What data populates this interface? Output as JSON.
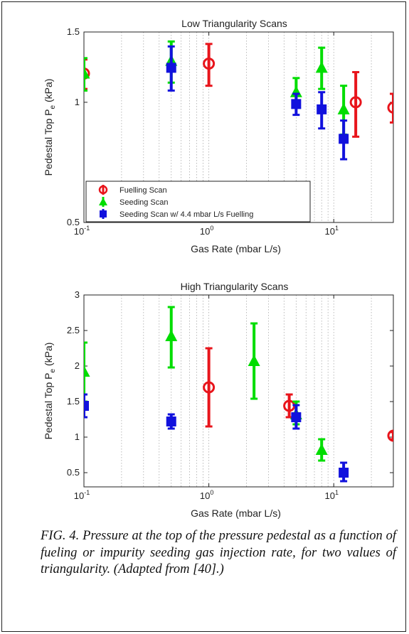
{
  "chart_data": [
    {
      "type": "scatter",
      "title": "Low Triangularity Scans",
      "xlabel": "Gas Rate (mbar L/s)",
      "ylabel": "Pedestal Top P",
      "ylabel_sub": "e",
      "ylabel_unit": " (kPa)",
      "xscale": "log",
      "yscale": "log",
      "xlim": [
        0.1,
        30
      ],
      "ylim": [
        0.5,
        1.5
      ],
      "xticks": [
        {
          "value": 0.1,
          "base": "10",
          "exp": "-1"
        },
        {
          "value": 1,
          "base": "10",
          "exp": "0"
        },
        {
          "value": 10,
          "base": "10",
          "exp": "1"
        }
      ],
      "yticks": [
        {
          "value": 0.5,
          "label": "0.5"
        },
        {
          "value": 1,
          "label": "1"
        },
        {
          "value": 1.5,
          "label": "1.5"
        }
      ],
      "grid": "x-minor-dotted",
      "legend_position": "bottom-left",
      "series": [
        {
          "name": "Fuelling Scan",
          "marker": "circle",
          "color": "#e8141b",
          "points": [
            {
              "x": 0.1,
              "y": 1.18,
              "lo": 1.08,
              "hi": 1.28
            },
            {
              "x": 1.0,
              "y": 1.25,
              "lo": 1.1,
              "hi": 1.4
            },
            {
              "x": 15,
              "y": 1.0,
              "lo": 0.82,
              "hi": 1.19
            },
            {
              "x": 30,
              "y": 0.97,
              "lo": 0.89,
              "hi": 1.05
            }
          ]
        },
        {
          "name": "Seeding Scan",
          "marker": "triangle",
          "color": "#00dd00",
          "points": [
            {
              "x": 0.1,
              "y": 1.18,
              "lo": 1.07,
              "hi": 1.29
            },
            {
              "x": 0.5,
              "y": 1.27,
              "lo": 1.12,
              "hi": 1.42
            },
            {
              "x": 5,
              "y": 1.06,
              "lo": 0.97,
              "hi": 1.15
            },
            {
              "x": 8,
              "y": 1.22,
              "lo": 1.08,
              "hi": 1.37
            },
            {
              "x": 12,
              "y": 0.96,
              "lo": 0.83,
              "hi": 1.1
            }
          ]
        },
        {
          "name": "Seeding Scan w/ 4.4 mbar L/s Fuelling",
          "marker": "square",
          "color": "#1111dd",
          "points": [
            {
              "x": 0.5,
              "y": 1.22,
              "lo": 1.07,
              "hi": 1.38
            },
            {
              "x": 5,
              "y": 0.99,
              "lo": 0.93,
              "hi": 1.05
            },
            {
              "x": 8,
              "y": 0.96,
              "lo": 0.86,
              "hi": 1.06
            },
            {
              "x": 12,
              "y": 0.81,
              "lo": 0.72,
              "hi": 0.9
            }
          ]
        }
      ]
    },
    {
      "type": "scatter",
      "title": "High Triangularity Scans",
      "xlabel": "Gas Rate (mbar L/s)",
      "ylabel": "Pedestal Top P",
      "ylabel_sub": "e",
      "ylabel_unit": " (kPa)",
      "xscale": "log",
      "yscale": "linear",
      "xlim": [
        0.1,
        30
      ],
      "ylim": [
        0.3,
        3.0
      ],
      "xticks": [
        {
          "value": 0.1,
          "base": "10",
          "exp": "-1"
        },
        {
          "value": 1,
          "base": "10",
          "exp": "0"
        },
        {
          "value": 10,
          "base": "10",
          "exp": "1"
        }
      ],
      "yticks": [
        {
          "value": 0.5,
          "label": "0.5"
        },
        {
          "value": 1,
          "label": "1"
        },
        {
          "value": 1.5,
          "label": "1.5"
        },
        {
          "value": 2,
          "label": "2"
        },
        {
          "value": 2.5,
          "label": "2.5"
        },
        {
          "value": 3,
          "label": "3"
        }
      ],
      "grid": "x-minor-dotted",
      "series": [
        {
          "name": "Fuelling Scan",
          "marker": "circle",
          "color": "#e8141b",
          "points": [
            {
              "x": 1.0,
              "y": 1.7,
              "lo": 1.15,
              "hi": 2.25
            },
            {
              "x": 4.4,
              "y": 1.44,
              "lo": 1.28,
              "hi": 1.6
            },
            {
              "x": 30,
              "y": 1.02,
              "lo": 0.97,
              "hi": 1.07
            }
          ]
        },
        {
          "name": "Seeding Scan",
          "marker": "triangle",
          "color": "#00dd00",
          "points": [
            {
              "x": 0.1,
              "y": 1.92,
              "lo": 1.5,
              "hi": 2.33
            },
            {
              "x": 0.5,
              "y": 2.42,
              "lo": 1.98,
              "hi": 2.83
            },
            {
              "x": 2.3,
              "y": 2.07,
              "lo": 1.54,
              "hi": 2.6
            },
            {
              "x": 5,
              "y": 1.32,
              "lo": 1.18,
              "hi": 1.5
            },
            {
              "x": 8,
              "y": 0.82,
              "lo": 0.67,
              "hi": 0.97
            }
          ]
        },
        {
          "name": "Seeding Scan w/ 4.4 mbar L/s Fuelling",
          "marker": "square",
          "color": "#1111dd",
          "points": [
            {
              "x": 0.1,
              "y": 1.44,
              "lo": 1.28,
              "hi": 1.6
            },
            {
              "x": 0.5,
              "y": 1.22,
              "lo": 1.12,
              "hi": 1.32
            },
            {
              "x": 5,
              "y": 1.28,
              "lo": 1.12,
              "hi": 1.45
            },
            {
              "x": 12,
              "y": 0.5,
              "lo": 0.38,
              "hi": 0.64
            }
          ]
        }
      ]
    }
  ],
  "caption": "FIG. 4. Pressure at the top of the pressure pedestal as a function of fueling or impurity seeding gas injection rate, for two values of triangularity. (Adapted from [40].)"
}
